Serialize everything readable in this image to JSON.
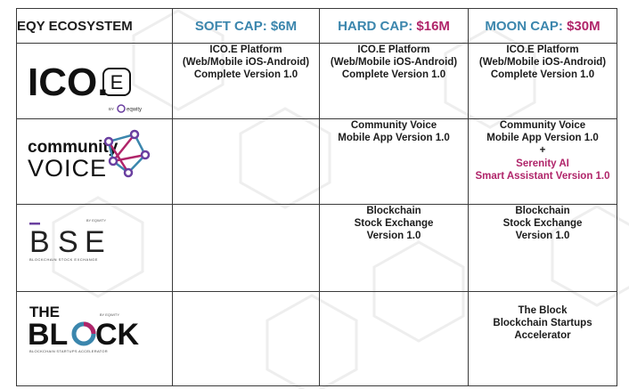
{
  "header": {
    "title": "EQY ECOSYSTEM",
    "soft": {
      "label": "SOFT CAP:",
      "amount": "$6M"
    },
    "hard": {
      "label": "HARD CAP:",
      "amount": "$16M"
    },
    "moon": {
      "label": "MOON CAP:",
      "amount": "$30M"
    }
  },
  "logos": {
    "ico": {
      "main": "ICO.",
      "badge": "E",
      "by": "BY",
      "brand": "eqwity"
    },
    "community": {
      "top": "community",
      "bottom": "VOICE"
    },
    "bse": {
      "by": "BY EQWITY",
      "letters": [
        "B",
        "S",
        "E"
      ],
      "caption": "BLOCKCHAIN STOCK EXCHANGE"
    },
    "block": {
      "top": "THE",
      "by": "BY EQWITY",
      "word": "BL",
      "tail": "CK",
      "caption": "BLOCKCHAIN STARTUPS ACCELERATOR"
    }
  },
  "rows": {
    "ico": {
      "soft": [
        "ICO.E Platform",
        "(Web/Mobile iOS-Android)",
        "Complete Version 1.0"
      ],
      "hard": [
        "ICO.E Platform",
        "(Web/Mobile iOS-Android)",
        "Complete Version 1.0"
      ],
      "moon": [
        "ICO.E Platform",
        "(Web/Mobile iOS-Android)",
        "Complete Version 1.0"
      ]
    },
    "community": {
      "hard": [
        "Community Voice",
        "Mobile App Version 1.0"
      ],
      "moon": [
        "Community Voice",
        "Mobile App Version 1.0",
        "+"
      ],
      "moon_extra": [
        "Serenity AI",
        "Smart Assistant Version 1.0"
      ]
    },
    "bse": {
      "hard": [
        "Blockchain",
        "Stock Exchange",
        "Version 1.0"
      ],
      "moon": [
        "Blockchain",
        "Stock Exchange",
        "Version 1.0"
      ]
    },
    "block": {
      "moon": [
        "The Block",
        "Blockchain Startups",
        "Accelerator"
      ]
    }
  },
  "colors": {
    "blue": "#3b86ad",
    "pink": "#b0256a",
    "purple": "#6a3fa0",
    "dark": "#1c1c1c"
  }
}
